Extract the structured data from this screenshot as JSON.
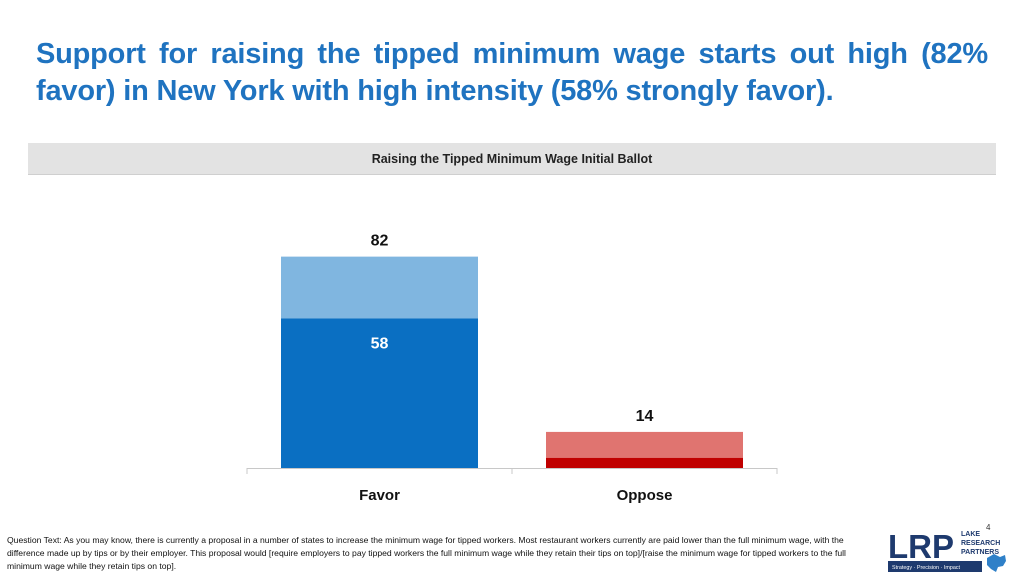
{
  "headline": "Support for raising the tipped minimum wage starts out high (82% favor) in New York with high intensity (58% strongly favor).",
  "banner_title": "Raising the Tipped Minimum Wage Initial Ballot",
  "chart_data": {
    "type": "bar",
    "stacked": true,
    "title": "Raising the Tipped Minimum Wage Initial Ballot",
    "categories": [
      "Favor",
      "Oppose"
    ],
    "series": [
      {
        "values": [
          58,
          4
        ],
        "colors": [
          "#0a6fc2",
          "#c00000"
        ]
      },
      {
        "values": [
          24,
          10
        ],
        "colors": [
          "#80b6e0",
          "#e07470"
        ]
      }
    ],
    "totals": [
      82,
      14
    ],
    "segment_labels": [
      [
        "58",
        null
      ],
      [
        null,
        null
      ]
    ],
    "ylim": [
      0,
      90
    ],
    "grid": false,
    "legend": "none"
  },
  "footnote": "Question Text: As you may know, there is currently a proposal in a number of states to increase the minimum wage for tipped workers. Most restaurant workers currently are paid lower than the full minimum wage, with the difference made up by tips or by their employer. This proposal would [require employers to pay tipped workers the full minimum wage while they retain their tips on top]/[raise the minimum wage for tipped workers to the full minimum wage while they retain tips on top].",
  "page_number": "4",
  "logo": {
    "mark": "LRP",
    "name_lines": [
      "LAKE",
      "RESEARCH",
      "PARTNERS"
    ],
    "tagline": "Strategy · Precision · Impact",
    "brand_color": "#1e3a6e",
    "accent_color": "#2f80c8"
  }
}
